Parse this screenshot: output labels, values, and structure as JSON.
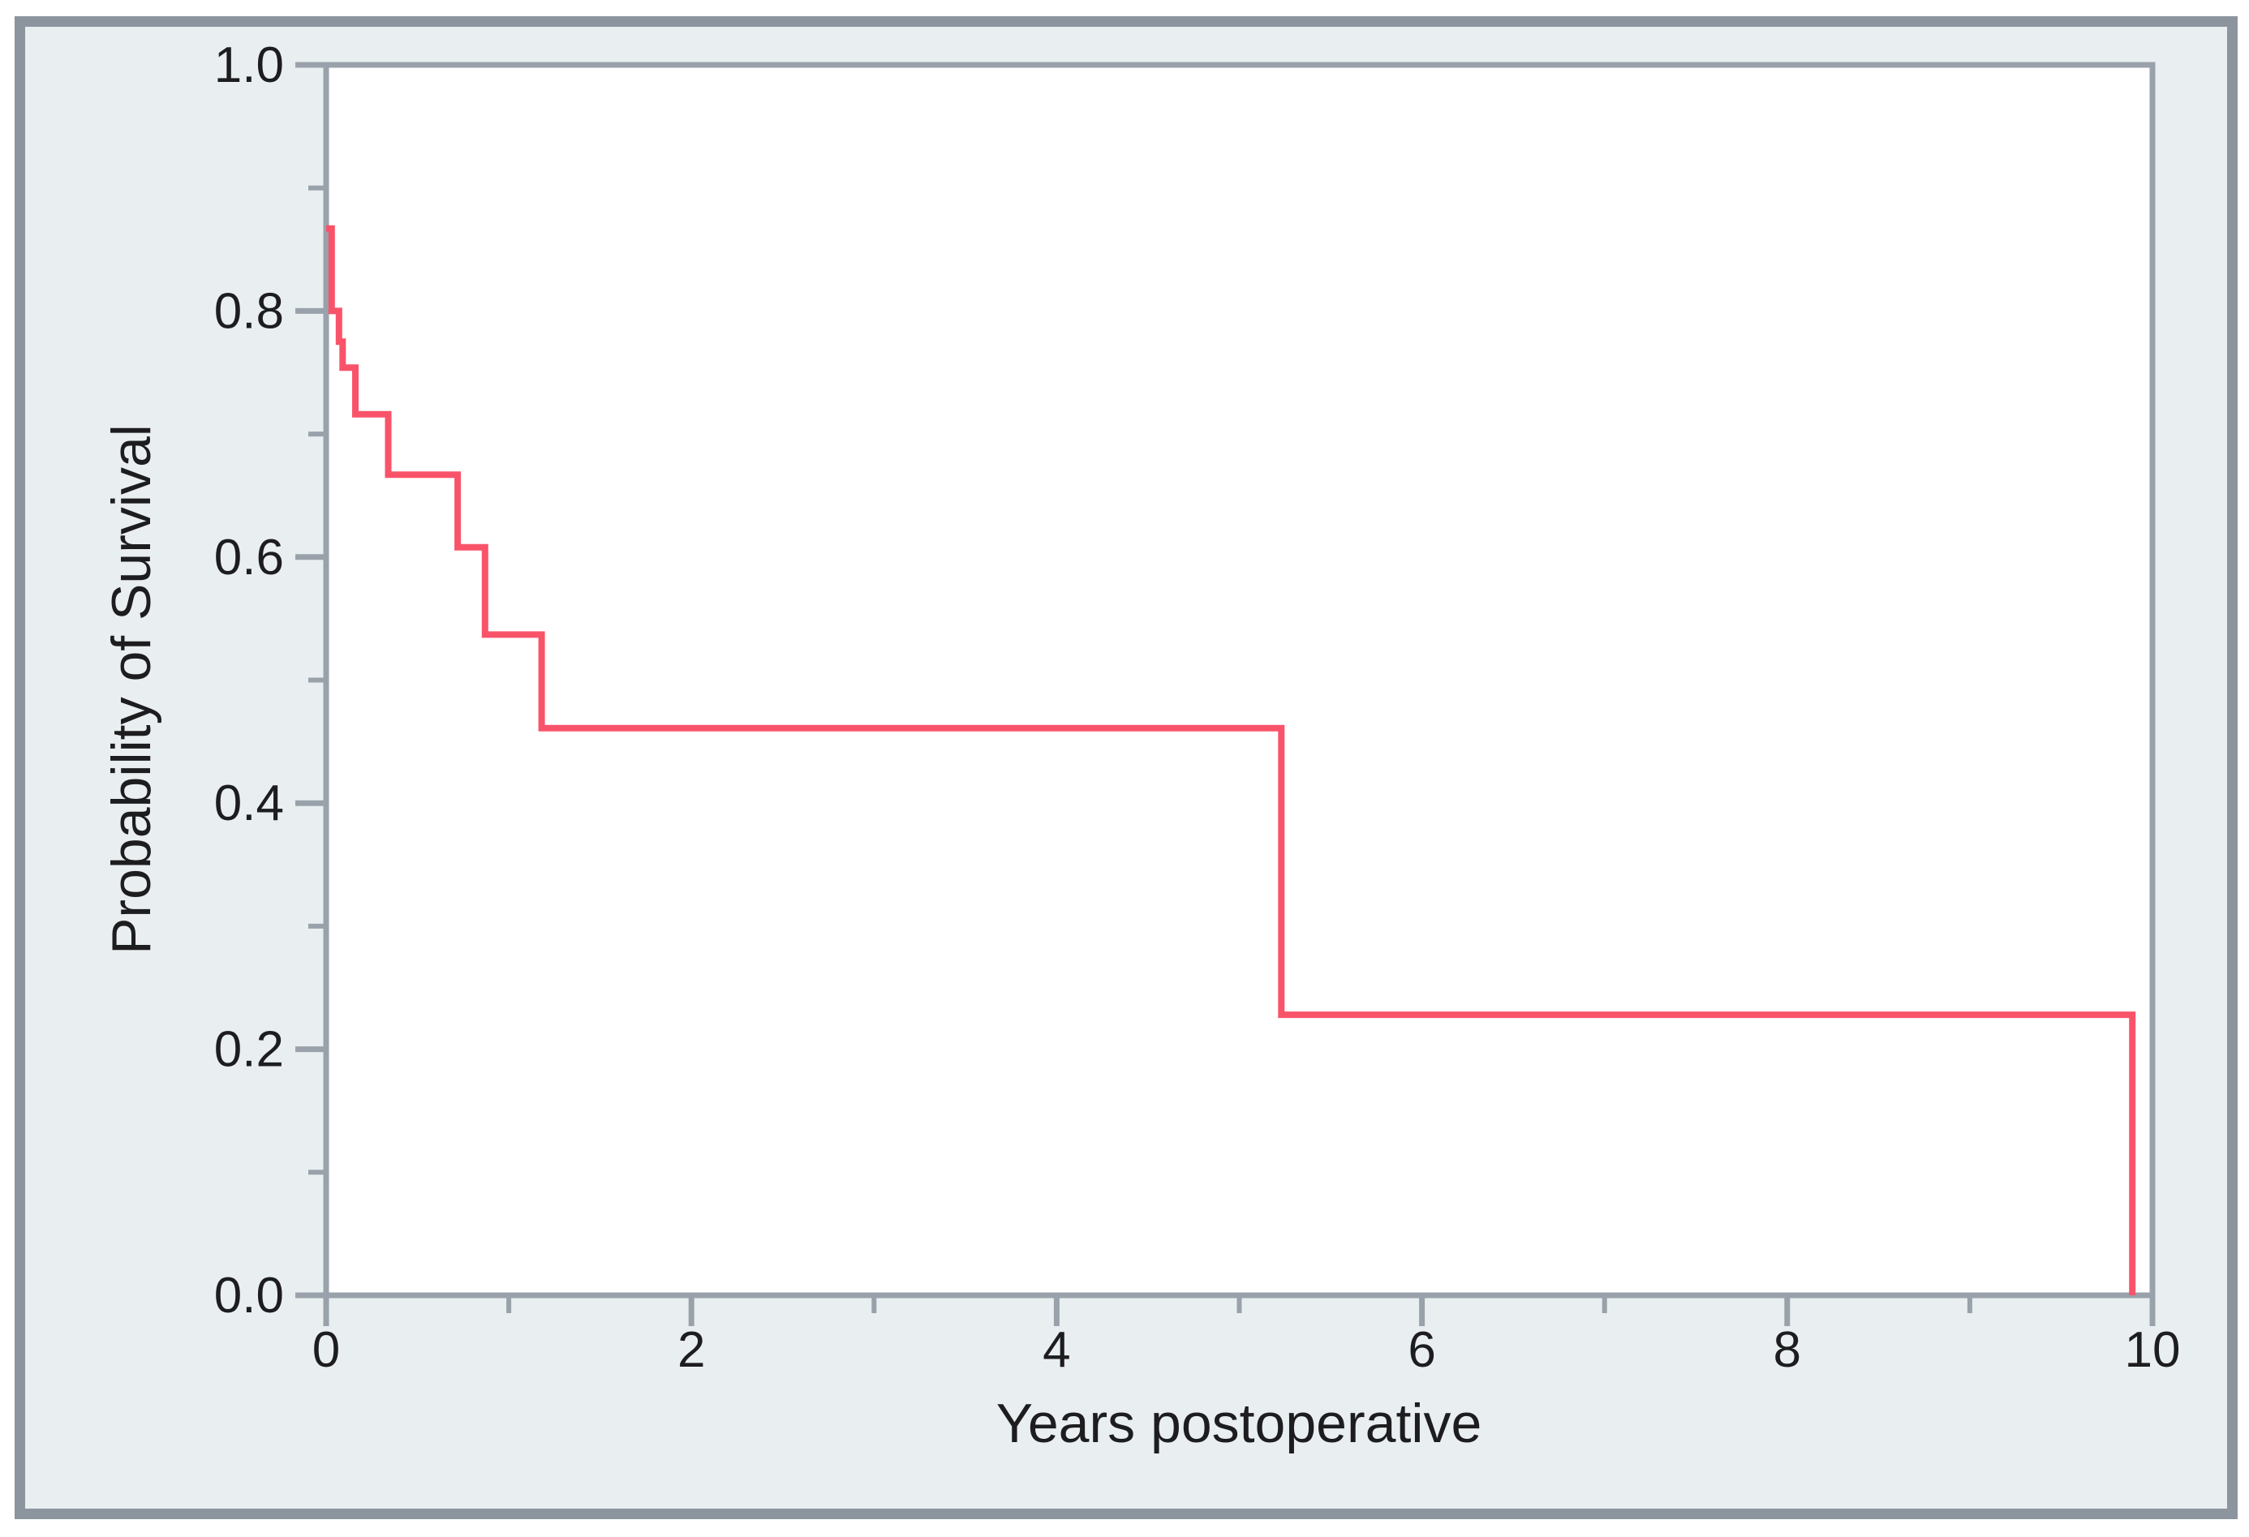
{
  "chart_data": {
    "type": "line",
    "subtype": "kaplan-meier-step",
    "title": "",
    "xlabel": "Years postoperative",
    "ylabel": "Probability of Survival",
    "xlim": [
      0,
      10
    ],
    "ylim": [
      0.0,
      1.0
    ],
    "grid": false,
    "legend": "none",
    "x_major_ticks": [
      0,
      2,
      4,
      6,
      8,
      10
    ],
    "x_major_tick_labels": [
      "0",
      "2",
      "4",
      "6",
      "8",
      "10"
    ],
    "x_minor_ticks": [
      1,
      3,
      5,
      7,
      9
    ],
    "y_major_ticks": [
      0.0,
      0.2,
      0.4,
      0.6,
      0.8,
      1.0
    ],
    "y_major_tick_labels": [
      "0.0",
      "0.2",
      "0.4",
      "0.6",
      "0.8",
      "1.0"
    ],
    "y_minor_ticks": [
      0.1,
      0.3,
      0.5,
      0.7,
      0.9
    ],
    "series": [
      {
        "name": "survival-curve",
        "color": "#f9536a",
        "step_points": [
          {
            "x": 0.0,
            "y": 0.867
          },
          {
            "x": 0.03,
            "y": 0.8
          },
          {
            "x": 0.07,
            "y": 0.775
          },
          {
            "x": 0.09,
            "y": 0.754
          },
          {
            "x": 0.16,
            "y": 0.716
          },
          {
            "x": 0.34,
            "y": 0.667
          },
          {
            "x": 0.72,
            "y": 0.608
          },
          {
            "x": 0.87,
            "y": 0.537
          },
          {
            "x": 1.18,
            "y": 0.461
          },
          {
            "x": 5.23,
            "y": 0.228
          },
          {
            "x": 9.89,
            "y": 0.0
          }
        ]
      }
    ]
  },
  "colors": {
    "line": "#f9536a",
    "plot_background": "#ffffff",
    "panel_background": "#e9eef0",
    "panel_border": "#8c959d",
    "axis_frame": "#99a2aa",
    "tick": "#99a2aa",
    "text": "#1d1d1f"
  }
}
